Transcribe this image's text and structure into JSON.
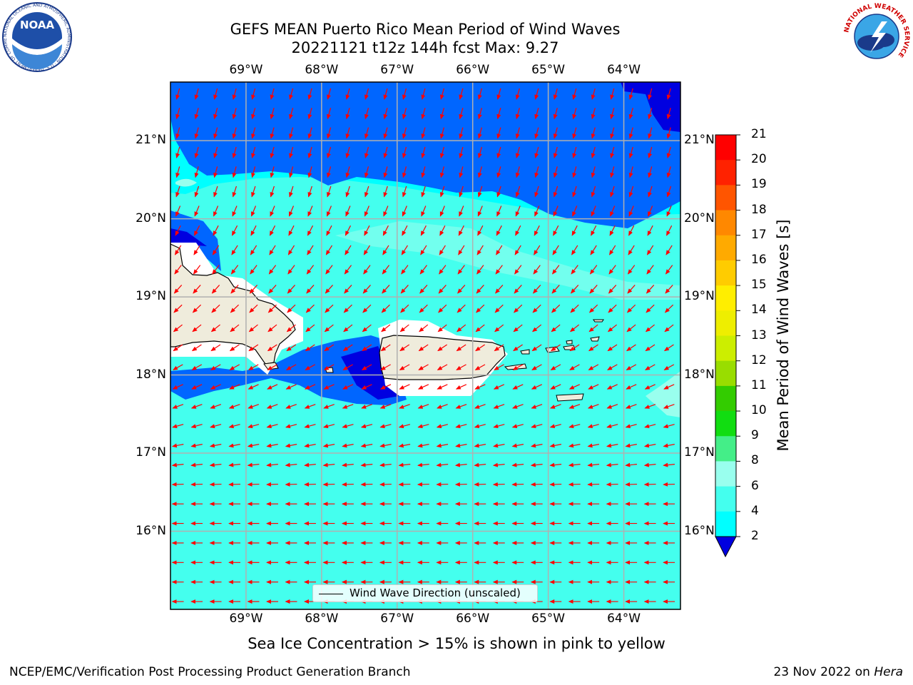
{
  "title": {
    "line1": "GEFS MEAN Puerto Rico Mean Period of Wind Waves",
    "line2": "20221121 t12z 144h fcst   Max: 9.27"
  },
  "map": {
    "lon_labels": [
      "69°W",
      "68°W",
      "67°W",
      "66°W",
      "65°W",
      "64°W"
    ],
    "lat_labels": [
      "21°N",
      "20°N",
      "19°N",
      "18°N",
      "17°N",
      "16°N"
    ],
    "lon_values": [
      -69,
      -68,
      -67,
      -66,
      -65,
      -64
    ],
    "lat_values": [
      21,
      20,
      19,
      18,
      17,
      16
    ],
    "extent": {
      "lon_min": -70.0,
      "lon_max": -63.25,
      "lat_min": 15.0,
      "lat_max": 21.75
    },
    "arrow_color": "#ff0000",
    "land_color": "#efecdc",
    "grid_color": "#b0b0b0"
  },
  "colorbar": {
    "title": "Mean Period of Wind Waves [s]",
    "ticks": [
      "21",
      "20",
      "19",
      "18",
      "17",
      "16",
      "15",
      "14",
      "13",
      "12",
      "11",
      "10",
      "9",
      "8",
      "6",
      "4",
      "2"
    ],
    "colors": [
      "#0000e0",
      "#0066ff",
      "#00ffff",
      "#44ffee",
      "#99ffee",
      "#44ee88",
      "#11dd11",
      "#33cc00",
      "#99dd00",
      "#ccee00",
      "#eeee00",
      "#ffee00",
      "#ffcc00",
      "#ffaa00",
      "#ff8800",
      "#ff5500",
      "#ff2200",
      "#ff0000"
    ]
  },
  "legend": {
    "label": "Wind Wave Direction (unscaled)"
  },
  "footnote": "Sea Ice Concentration > 15% is shown in pink to yellow",
  "footer": {
    "left": "NCEP/EMC/Verification Post Processing Product Generation Branch",
    "right_date": "23 Nov 2022 on ",
    "right_host": "Hera"
  },
  "logos": {
    "noaa_text": "NOAA",
    "noaa_ring": "NATIONAL OCEANIC AND ATMOSPHERIC ADMINISTRATION · U.S. DEPARTMENT OF COMMERCE",
    "nws_ring": "NATIONAL WEATHER SERVICE"
  }
}
